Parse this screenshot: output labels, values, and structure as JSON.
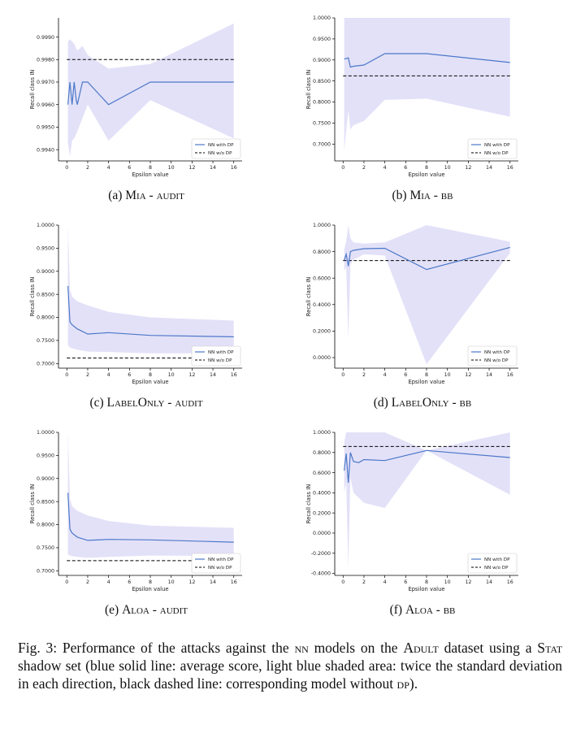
{
  "legend": {
    "dp_label": "NN with DP",
    "nodp_label": "NN w/o DP"
  },
  "colors": {
    "line": "#4c78c8",
    "band": "#dedcf7",
    "baseline": "#000000"
  },
  "caption": {
    "fig_label": "Fig. 3:",
    "text_before": "Performance of the attacks against the",
    "nn": "nn",
    "text_mid1": "models on the",
    "dataset": "Adult",
    "text_mid2": "dataset using a",
    "stat": "Stat",
    "text_after": "shadow set (blue solid line: average score, light blue shaded area: twice the standard deviation in each direction, black dashed line: corresponding model without",
    "dp": "dp",
    "end": ")."
  },
  "chart_data": [
    {
      "type": "line",
      "subcaption": {
        "letter": "(a)",
        "attack": "Mia",
        "sep": "-",
        "setting": "audit"
      },
      "xlabel": "Epsilon value",
      "ylabel": "Recall class IN",
      "xlim": [
        -0.8,
        16.8
      ],
      "ylim": [
        0.9935,
        0.99985
      ],
      "xticks": [
        0,
        2,
        4,
        6,
        8,
        10,
        12,
        14,
        16
      ],
      "yticks": [
        0.994,
        0.995,
        0.996,
        0.997,
        0.998,
        0.999
      ],
      "ytick_labels": [
        "0.9940",
        "0.9950",
        "0.9960",
        "0.9970",
        "0.9980",
        "0.9990"
      ],
      "x": [
        0.1,
        0.3,
        0.5,
        0.7,
        0.9,
        1.0,
        1.5,
        2.0,
        4.0,
        8.0,
        16.0
      ],
      "series": [
        {
          "name": "NN with DP",
          "values": [
            0.996,
            0.997,
            0.996,
            0.997,
            0.9962,
            0.996,
            0.997,
            0.997,
            0.996,
            0.997,
            0.997
          ],
          "lower": [
            0.9943,
            0.9937,
            0.9944,
            0.9945,
            0.9947,
            0.9948,
            0.9954,
            0.996,
            0.9944,
            0.9962,
            0.9945
          ],
          "upper": [
            0.9988,
            0.9989,
            0.9988,
            0.9987,
            0.9985,
            0.9984,
            0.9986,
            0.9982,
            0.9976,
            0.9978,
            0.9996
          ]
        }
      ],
      "baseline": 0.998,
      "legend_position": "lower-right"
    },
    {
      "type": "line",
      "subcaption": {
        "letter": "(b)",
        "attack": "Mia",
        "sep": "-",
        "setting": "bb"
      },
      "xlabel": "Epsilon value",
      "ylabel": "Recall class IN",
      "xlim": [
        -0.8,
        16.8
      ],
      "ylim": [
        0.66,
        1.0
      ],
      "xticks": [
        0,
        2,
        4,
        6,
        8,
        10,
        12,
        14,
        16
      ],
      "yticks": [
        0.7,
        0.75,
        0.8,
        0.85,
        0.9,
        0.95,
        1.0
      ],
      "ytick_labels": [
        "0.7000",
        "0.7500",
        "0.8000",
        "0.8500",
        "0.9000",
        "0.9500",
        "1.0000"
      ],
      "x": [
        0.1,
        0.5,
        0.7,
        1.0,
        2.0,
        4.0,
        8.0,
        16.0
      ],
      "series": [
        {
          "name": "NN with DP",
          "values": [
            0.902,
            0.905,
            0.883,
            0.885,
            0.888,
            0.915,
            0.915,
            0.894
          ],
          "lower": [
            0.685,
            0.78,
            0.735,
            0.745,
            0.755,
            0.805,
            0.808,
            0.765
          ],
          "upper": [
            1.0,
            1.0,
            1.0,
            1.0,
            1.0,
            1.0,
            1.0,
            1.0
          ]
        }
      ],
      "baseline": 0.862,
      "legend_position": "lower-right"
    },
    {
      "type": "line",
      "subcaption": {
        "letter": "(c)",
        "attack": "LabelOnly",
        "sep": "-",
        "setting": "audit"
      },
      "xlabel": "Epsilon value",
      "ylabel": "Recall class IN",
      "xlim": [
        -0.8,
        16.8
      ],
      "ylim": [
        0.69,
        1.0
      ],
      "xticks": [
        0,
        2,
        4,
        6,
        8,
        10,
        12,
        14,
        16
      ],
      "yticks": [
        0.7,
        0.75,
        0.8,
        0.85,
        0.9,
        0.95,
        1.0
      ],
      "ytick_labels": [
        "0.7000",
        "0.7500",
        "0.8000",
        "0.8500",
        "0.9000",
        "0.9500",
        "1.0000"
      ],
      "x": [
        0.1,
        0.3,
        0.5,
        1.0,
        2.0,
        4.0,
        8.0,
        16.0
      ],
      "series": [
        {
          "name": "NN with DP",
          "values": [
            0.868,
            0.79,
            0.784,
            0.775,
            0.764,
            0.767,
            0.761,
            0.758
          ],
          "lower": [
            0.74,
            0.735,
            0.733,
            0.73,
            0.726,
            0.725,
            0.722,
            0.722
          ],
          "upper": [
            1.0,
            0.86,
            0.845,
            0.835,
            0.826,
            0.812,
            0.8,
            0.793
          ]
        }
      ],
      "baseline": 0.712,
      "legend_position": "lower-right"
    },
    {
      "type": "line",
      "subcaption": {
        "letter": "(d)",
        "attack": "LabelOnly",
        "sep": "-",
        "setting": "bb"
      },
      "xlabel": "Epsilon value",
      "ylabel": "Recall class IN",
      "xlim": [
        -0.8,
        16.8
      ],
      "ylim": [
        -0.08,
        1.0
      ],
      "xticks": [
        0,
        2,
        4,
        6,
        8,
        10,
        12,
        14,
        16
      ],
      "yticks": [
        0.0,
        0.2,
        0.4,
        0.6,
        0.8,
        1.0
      ],
      "ytick_labels": [
        "0.0000",
        "0.2000",
        "0.4000",
        "0.6000",
        "0.8000",
        "1.0000"
      ],
      "x": [
        0.1,
        0.3,
        0.5,
        0.7,
        1.0,
        2.0,
        4.0,
        8.0,
        16.0
      ],
      "series": [
        {
          "name": "NN with DP",
          "values": [
            0.735,
            0.78,
            0.69,
            0.8,
            0.81,
            0.822,
            0.825,
            0.665,
            0.832
          ],
          "lower": [
            0.655,
            0.68,
            0.14,
            0.7,
            0.74,
            0.78,
            0.77,
            -0.05,
            0.79
          ],
          "upper": [
            0.815,
            0.88,
            1.0,
            0.9,
            0.87,
            0.86,
            0.87,
            1.0,
            0.875
          ]
        }
      ],
      "baseline": 0.732,
      "legend_position": "lower-right"
    },
    {
      "type": "line",
      "subcaption": {
        "letter": "(e)",
        "attack": "Aloa",
        "sep": "-",
        "setting": "audit"
      },
      "xlabel": "Epsilon value",
      "ylabel": "Recall class IN",
      "xlim": [
        -0.8,
        16.8
      ],
      "ylim": [
        0.69,
        1.0
      ],
      "xticks": [
        0,
        2,
        4,
        6,
        8,
        10,
        12,
        14,
        16
      ],
      "yticks": [
        0.7,
        0.75,
        0.8,
        0.85,
        0.9,
        0.95,
        1.0
      ],
      "ytick_labels": [
        "0.7000",
        "0.7500",
        "0.8000",
        "0.8500",
        "0.9000",
        "0.9500",
        "1.0000"
      ],
      "x": [
        0.1,
        0.3,
        0.5,
        1.0,
        2.0,
        4.0,
        8.0,
        16.0
      ],
      "series": [
        {
          "name": "NN with DP",
          "values": [
            0.869,
            0.79,
            0.782,
            0.773,
            0.766,
            0.768,
            0.767,
            0.762
          ],
          "lower": [
            0.735,
            0.733,
            0.732,
            0.73,
            0.728,
            0.73,
            0.733,
            0.732
          ],
          "upper": [
            1.0,
            0.855,
            0.84,
            0.83,
            0.82,
            0.808,
            0.798,
            0.793
          ]
        }
      ],
      "baseline": 0.722,
      "legend_position": "lower-right"
    },
    {
      "type": "line",
      "subcaption": {
        "letter": "(f)",
        "attack": "Aloa",
        "sep": "-",
        "setting": "bb"
      },
      "xlabel": "Epsilon value",
      "ylabel": "Recall class IN",
      "xlim": [
        -0.8,
        16.8
      ],
      "ylim": [
        -0.42,
        1.0
      ],
      "xticks": [
        0,
        2,
        4,
        6,
        8,
        10,
        12,
        14,
        16
      ],
      "yticks": [
        -0.4,
        -0.2,
        0.0,
        0.2,
        0.4,
        0.6,
        0.8,
        1.0
      ],
      "ytick_labels": [
        "-0.4000",
        "-0.2000",
        "0.0000",
        "0.2000",
        "0.4000",
        "0.6000",
        "0.8000",
        "1.0000"
      ],
      "x": [
        0.1,
        0.3,
        0.5,
        0.7,
        1.0,
        1.5,
        2.0,
        4.0,
        8.0,
        16.0
      ],
      "series": [
        {
          "name": "NN with DP",
          "values": [
            0.62,
            0.79,
            0.5,
            0.8,
            0.71,
            0.7,
            0.73,
            0.72,
            0.82,
            0.75
          ],
          "lower": [
            0.4,
            0.5,
            -0.35,
            0.55,
            0.4,
            0.35,
            0.3,
            0.25,
            0.82,
            0.38
          ],
          "upper": [
            0.9,
            1.0,
            1.0,
            1.0,
            1.0,
            1.0,
            1.0,
            1.0,
            0.82,
            1.0
          ]
        }
      ],
      "baseline": 0.86,
      "legend_position": "lower-right"
    }
  ]
}
